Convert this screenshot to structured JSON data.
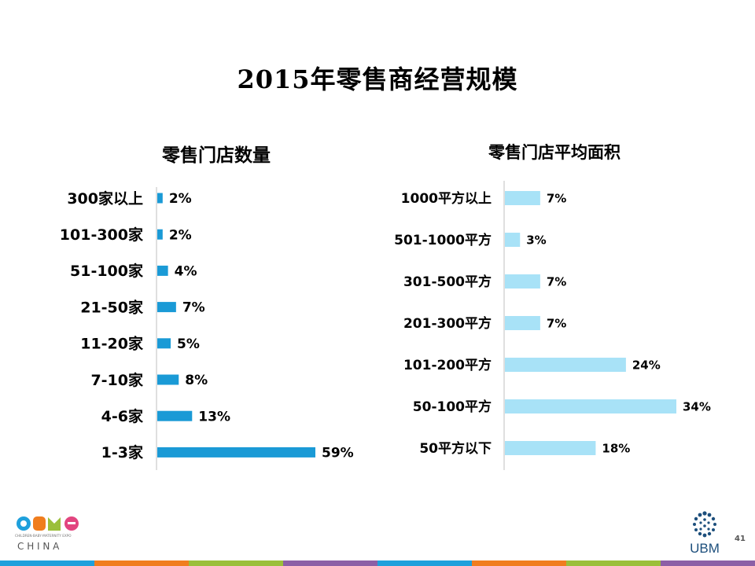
{
  "title": "2015年零售商经营规模",
  "page_number": "41",
  "logos": {
    "cbme_small": "CHILDREN·BABY·MATERNITY EXPO",
    "cbme_country": "C H I N A",
    "ubm": "UBM"
  },
  "footer_colors": [
    "#1ea0dc",
    "#f07d1e",
    "#9bbf3a",
    "#8c5fa6",
    "#1ea0dc",
    "#f07d1e",
    "#9bbf3a",
    "#8c5fa6"
  ],
  "chart_data": [
    {
      "type": "bar",
      "orientation": "horizontal",
      "title": "零售门店数量",
      "categories": [
        "300家以上",
        "101-300家",
        "51-100家",
        "21-50家",
        "11-20家",
        "7-10家",
        "4-6家",
        "1-3家"
      ],
      "values": [
        2,
        2,
        4,
        7,
        5,
        8,
        13,
        59
      ],
      "labels": [
        "2%",
        "2%",
        "4%",
        "7%",
        "5%",
        "8%",
        "13%",
        "59%"
      ],
      "unit": "%",
      "color": "#1a9ad6",
      "xlim": [
        0,
        59
      ]
    },
    {
      "type": "bar",
      "orientation": "horizontal",
      "title": "零售门店平均面积",
      "categories": [
        "1000平方以上",
        "501-1000平方",
        "301-500平方",
        "201-300平方",
        "101-200平方",
        "50-100平方",
        "50平方以下"
      ],
      "values": [
        7,
        3,
        7,
        7,
        24,
        34,
        18
      ],
      "labels": [
        "7%",
        "3%",
        "7%",
        "7%",
        "24%",
        "34%",
        "18%"
      ],
      "unit": "%",
      "color": "#a8e2f7",
      "xlim": [
        0,
        34
      ]
    }
  ]
}
